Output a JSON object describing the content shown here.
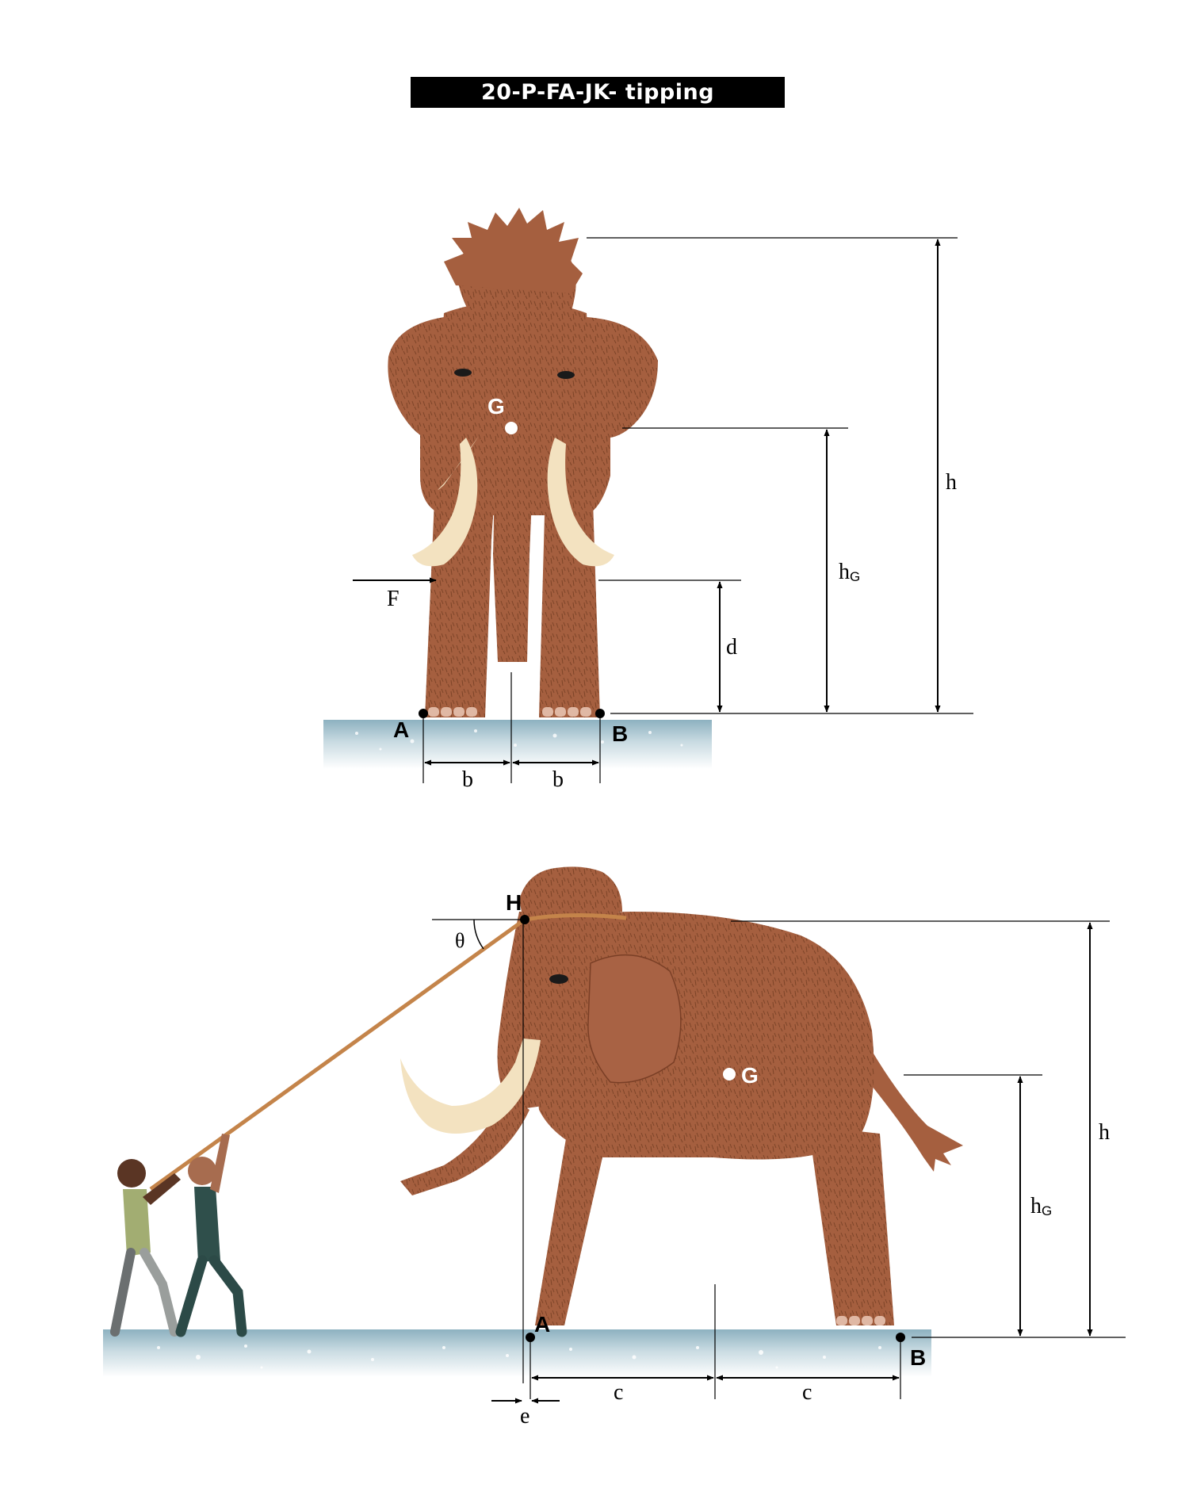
{
  "title": "20-P-FA-JK- tipping",
  "front_view": {
    "labels": {
      "G": "G",
      "F": "F",
      "A": "A",
      "B": "B",
      "b_left": "b",
      "b_right": "b",
      "d": "d",
      "hG": "h",
      "hG_sub": "G",
      "h": "h"
    }
  },
  "side_view": {
    "labels": {
      "H": "H",
      "theta": "θ",
      "G": "G",
      "A": "A",
      "B": "B",
      "c_left": "c",
      "c_right": "c",
      "e": "e",
      "hG": "h",
      "hG_sub": "G",
      "h": "h"
    }
  },
  "colors": {
    "fur": "#a55f3f",
    "fur_dark": "#7a3f26",
    "tusk": "#f3e2c0",
    "ground_top": "#8fb3c2",
    "ground_bottom": "#ffffff",
    "rope": "#c4844a",
    "line": "#000000"
  }
}
